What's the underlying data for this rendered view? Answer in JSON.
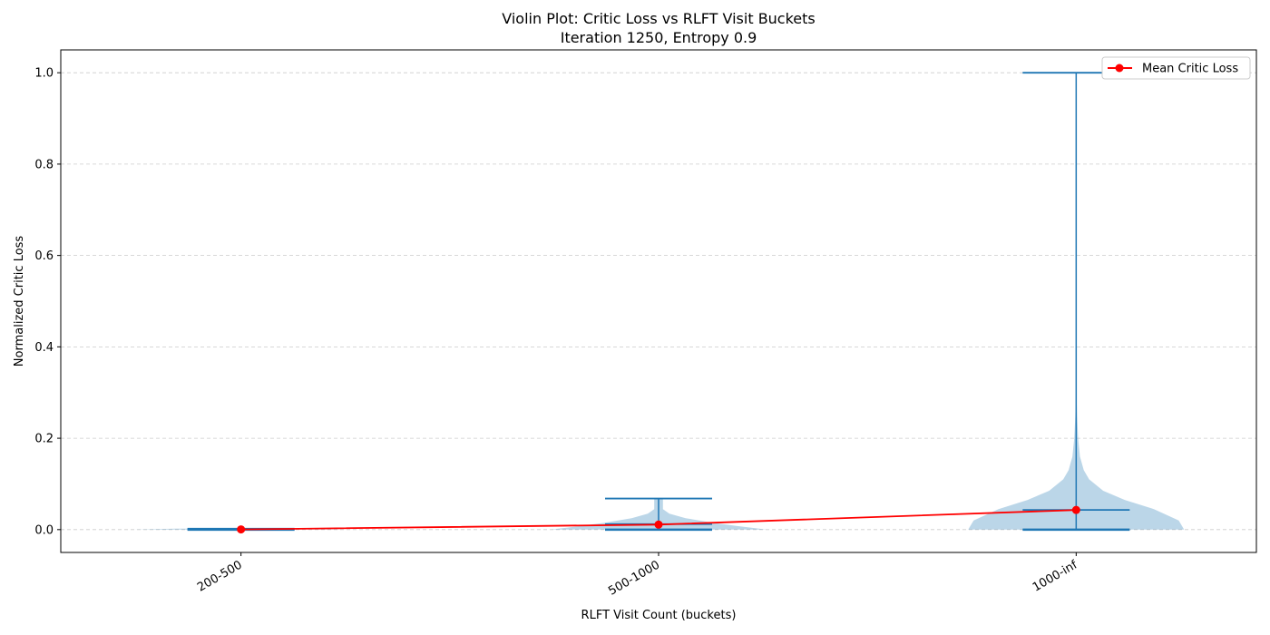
{
  "chart_data": {
    "type": "violin",
    "title": "Violin Plot: Critic Loss vs RLFT Visit Buckets",
    "subtitle": "Iteration 1250, Entropy 0.9",
    "xlabel": "RLFT Visit Count (buckets)",
    "ylabel": "Normalized Critic Loss",
    "ylim": [
      -0.05,
      1.05
    ],
    "yticks": [
      "0.0",
      "0.2",
      "0.4",
      "0.6",
      "0.8",
      "1.0"
    ],
    "grid": "y-dashed",
    "categories": [
      "200-500",
      "500-1000",
      "1000-inf"
    ],
    "violins": [
      {
        "category": "200-500",
        "min": 0.0,
        "max": 0.002,
        "median": 0.0005,
        "mean": 0.0005,
        "density": [
          [
            0.0,
            1.0
          ],
          [
            0.002,
            0.6
          ]
        ]
      },
      {
        "category": "500-1000",
        "min": 0.0,
        "max": 0.068,
        "median": 0.012,
        "mean": 0.011,
        "density": [
          [
            0.0,
            1.0
          ],
          [
            0.008,
            0.72
          ],
          [
            0.015,
            0.5
          ],
          [
            0.025,
            0.25
          ],
          [
            0.035,
            0.1
          ],
          [
            0.045,
            0.04
          ],
          [
            0.055,
            0.04
          ],
          [
            0.068,
            0.04
          ]
        ]
      },
      {
        "category": "1000-inf",
        "min": 0.0,
        "max": 1.0,
        "median": 0.043,
        "mean": 0.043,
        "density": [
          [
            0.0,
            1.0
          ],
          [
            0.02,
            0.95
          ],
          [
            0.045,
            0.72
          ],
          [
            0.065,
            0.45
          ],
          [
            0.085,
            0.25
          ],
          [
            0.11,
            0.12
          ],
          [
            0.13,
            0.07
          ],
          [
            0.16,
            0.035
          ],
          [
            0.2,
            0.018
          ],
          [
            0.25,
            0.008
          ],
          [
            0.3,
            0.003
          ],
          [
            0.4,
            0.0
          ]
        ]
      }
    ],
    "series": [
      {
        "name": "Mean Critic Loss",
        "color": "#ff0000",
        "values": [
          0.0005,
          0.011,
          0.043
        ]
      }
    ],
    "legend_position": "top-right",
    "colors": {
      "violin_fill": "#1f77b4",
      "violin_alpha": 0.3,
      "whisker": "#1f77b4",
      "mean_line": "#ff0000",
      "grid": "#cccccc"
    }
  }
}
